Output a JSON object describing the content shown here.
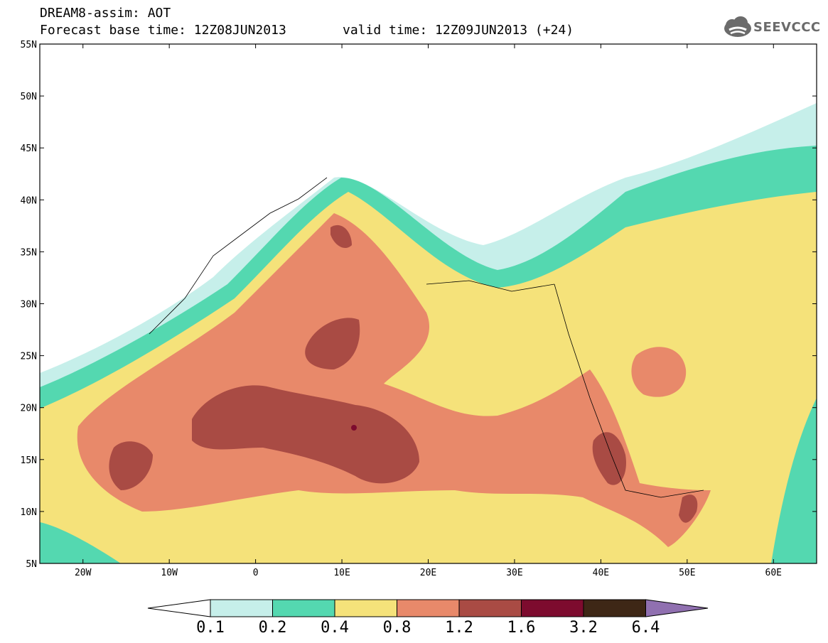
{
  "header": {
    "line1": "DREAM8-assim: AOT",
    "line2": "Forecast base time: 12Z08JUN2013",
    "valid": "valid time: 12Z09JUN2013 (+24)"
  },
  "logo": {
    "text": "SEEVCCC",
    "icon": "cloud-icon"
  },
  "axes": {
    "lat_labels": [
      "55N",
      "50N",
      "45N",
      "40N",
      "35N",
      "30N",
      "25N",
      "20N",
      "15N",
      "10N",
      "5N"
    ],
    "lon_labels": [
      "20W",
      "10W",
      "0",
      "10E",
      "20E",
      "30E",
      "40E",
      "50E",
      "60E"
    ],
    "lat_range": [
      5,
      55
    ],
    "lon_range": [
      -25,
      65
    ]
  },
  "colorbar": {
    "labels": [
      "0.1",
      "0.2",
      "0.4",
      "0.8",
      "1.2",
      "1.6",
      "3.2",
      "6.4"
    ],
    "colors": {
      "below": "#ffffff",
      "c1": "#c6efea",
      "c2": "#54d8b0",
      "c3": "#f5e27a",
      "c4": "#e8896a",
      "c5": "#a94b44",
      "c6": "#7d0b2e",
      "c7": "#3e2716",
      "above": "#9070b0"
    }
  }
}
